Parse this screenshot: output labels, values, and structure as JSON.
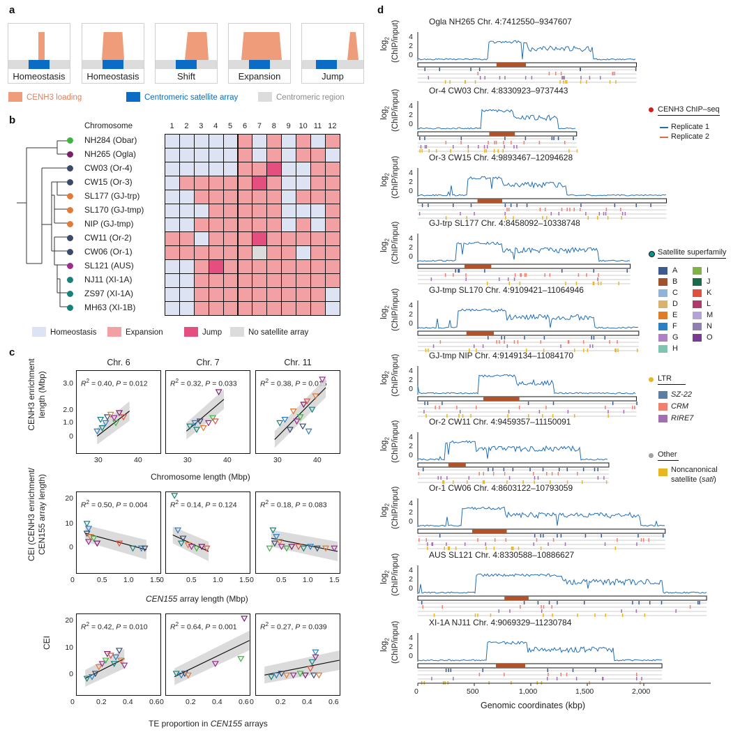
{
  "panel_a": {
    "letter": "a",
    "boxes": [
      "Homeostasis",
      "Homeostasis",
      "Shift",
      "Expansion",
      "Jump"
    ],
    "legend": [
      "CENH3 loading",
      "Centromeric satellite array",
      "Centromeric region"
    ],
    "colors": {
      "cenh3": "#ee9c7a",
      "satellite": "#0a6cc4",
      "region": "#dcdcdc"
    }
  },
  "panel_b": {
    "letter": "b",
    "header": "Chromosome",
    "columns": [
      "1",
      "2",
      "3",
      "4",
      "5",
      "6",
      "7",
      "8",
      "9",
      "10",
      "11",
      "12"
    ],
    "strains": [
      {
        "label": "NH284 (Obar)",
        "color": "#3fb53f"
      },
      {
        "label": "NH265 (Ogla)",
        "color": "#7a1f6b"
      },
      {
        "label": "CW03 (Or-4)",
        "color": "#3b4a6b"
      },
      {
        "label": "CW15 (Or-3)",
        "color": "#3b4a6b"
      },
      {
        "label": "SL177 (GJ-trp)",
        "color": "#e07b39"
      },
      {
        "label": "SL170 (GJ-tmp)",
        "color": "#e07b39"
      },
      {
        "label": "NIP (GJ-tmp)",
        "color": "#e07b39"
      },
      {
        "label": "CW11 (Or-2)",
        "color": "#3b4a6b"
      },
      {
        "label": "CW06 (Or-1)",
        "color": "#3b4a6b"
      },
      {
        "label": "SL121 (AUS)",
        "color": "#9b2d8f"
      },
      {
        "label": "NJ11 (XI-1A)",
        "color": "#17827a"
      },
      {
        "label": "ZS97 (XI-1A)",
        "color": "#17827a"
      },
      {
        "label": "MH63 (XI-1B)",
        "color": "#17827a"
      }
    ],
    "matrix": [
      "HHHHHEHEHEHE",
      "HHHHHEHEHEEH",
      "HHHHHEEJHHEE",
      "HEEEEEJEHHEE",
      "HHEEEEEEHEEE",
      "HHHEEEEEHHHE",
      "HHEEEEEEHEHE",
      "EEHEEEJEEEEE",
      "EEEEEENEEHEE",
      "HHEJEEEEEEEE",
      "HHEEEEEEEEEE",
      "HHEEEEEEEEEH",
      "HHEEEEEEEEEH"
    ],
    "legend": [
      {
        "code": "H",
        "label": "Homeostasis",
        "color": "#dde3f2"
      },
      {
        "code": "E",
        "label": "Expansion",
        "color": "#f2a0a4"
      },
      {
        "code": "J",
        "label": "Jump",
        "color": "#e54f80"
      },
      {
        "code": "N",
        "label": "No satellite array",
        "color": "#dcdcdc"
      }
    ]
  },
  "panel_c": {
    "letter": "c",
    "column_titles": [
      "Chr. 6",
      "Chr. 7",
      "Chr. 11"
    ],
    "row1": {
      "ylabel1": "CENH3 enrichment",
      "ylabel2": "length (Mbp)",
      "xlabel": "Chromosome length (Mbp)",
      "yticks": [
        "3.0",
        "2.0",
        "1.0",
        "0"
      ],
      "xticks": [
        "30",
        "40"
      ],
      "stats": [
        "R2 = 0.40, P = 0.012",
        "R2 = 0.32, P = 0.033",
        "R2 = 0.38, P = 0.015"
      ]
    },
    "row2": {
      "ylabel1": "CEI (CENH3 enrichment/",
      "ylabel2": "CEN155 array length)",
      "xlabel": "CEN155 array length (Mbp)",
      "yticks": [
        "20",
        "10",
        "0"
      ],
      "xticks": [
        "0",
        "0.5",
        "1.0",
        "1.5"
      ],
      "stats": [
        "R2 = 0.50, P = 0.004",
        "R2 = 0.14, P = 0.124",
        "R2 = 0.18, P = 0.083"
      ]
    },
    "row3": {
      "ylabel1": "CEI",
      "xlabel": "TE proportion in CEN155 arrays",
      "yticks": [
        "20",
        "10",
        "0"
      ],
      "xticks": [
        "0",
        "0.2",
        "0.4",
        "0.6"
      ],
      "stats": [
        "R2 = 0.42, P = 0.010",
        "R2 = 0.64, P = 0.001",
        "R2 = 0.27, P = 0.039"
      ]
    }
  },
  "panel_d": {
    "letter": "d",
    "ylabel1": "log2",
    "ylabel2": "(ChIP/input)",
    "yticks": [
      "4",
      "2",
      "0"
    ],
    "xticks": [
      "0",
      "500",
      "1,000",
      "1,500",
      "2,000"
    ],
    "xlabel": "Genomic coordinates (kbp)",
    "tracks": [
      "Ogla NH265 Chr. 4:7412550–9347607",
      "Or-4 CW03 Chr. 4:8330923–9737443",
      "Or-3 CW15 Chr. 4:9893467–12094628",
      "GJ-trp SL177 Chr. 4:8458092–10338748",
      "GJ-tmp SL170 Chr. 4:9109421–11064946",
      "GJ-tmp NIP Chr. 4:9149134–11084170",
      "Or-2 CW11 Chr. 4:9459357–11150091",
      "Or-1 CW06 Chr. 4:8603122–10793059",
      "AUS SL121 Chr. 4:8330588–10886627",
      "XI-1A NJ11 Chr. 4:9069329–11230784"
    ],
    "track_lengths_kbp": [
      1935,
      1406,
      2201,
      1880,
      1956,
      1935,
      1691,
      2190,
      2556,
      2161
    ],
    "legend": {
      "chip_title": "CENH3 ChIP–seq",
      "replicates": [
        "Replicate 1",
        "Replicate 2"
      ],
      "sat_title": "Satellite superfamily",
      "superfamilies": [
        {
          "name": "A",
          "color": "#3b5b8f"
        },
        {
          "name": "B",
          "color": "#a0532a"
        },
        {
          "name": "C",
          "color": "#8fb3d9"
        },
        {
          "name": "D",
          "color": "#d9b36e"
        },
        {
          "name": "E",
          "color": "#e07b26"
        },
        {
          "name": "F",
          "color": "#2d7fc4"
        },
        {
          "name": "G",
          "color": "#b07fc4"
        },
        {
          "name": "H",
          "color": "#7fc4b0"
        },
        {
          "name": "I",
          "color": "#7fb34a"
        },
        {
          "name": "J",
          "color": "#1a6b4a"
        },
        {
          "name": "K",
          "color": "#e0523f"
        },
        {
          "name": "L",
          "color": "#b03a6b"
        },
        {
          "name": "M",
          "color": "#b3a3d9"
        },
        {
          "name": "N",
          "color": "#8f7fb3"
        },
        {
          "name": "O",
          "color": "#7a3a8f"
        }
      ],
      "ltr_title": "LTR",
      "ltr": [
        {
          "name": "SZ-22",
          "color": "#5a7fa3"
        },
        {
          "name": "CRM",
          "color": "#ef7f6f"
        },
        {
          "name": "RIRE7",
          "color": "#a36fb3"
        }
      ],
      "other_title": "Other",
      "other": [
        {
          "name1": "Noncanonical",
          "name2": "satellite (sati)",
          "color": "#e8b620"
        }
      ],
      "dot_colors": {
        "chip": "#cc1f1f",
        "sat": "#0e8f8f",
        "ltr": "#e8b620",
        "other": "#a0a0a0"
      }
    }
  }
}
